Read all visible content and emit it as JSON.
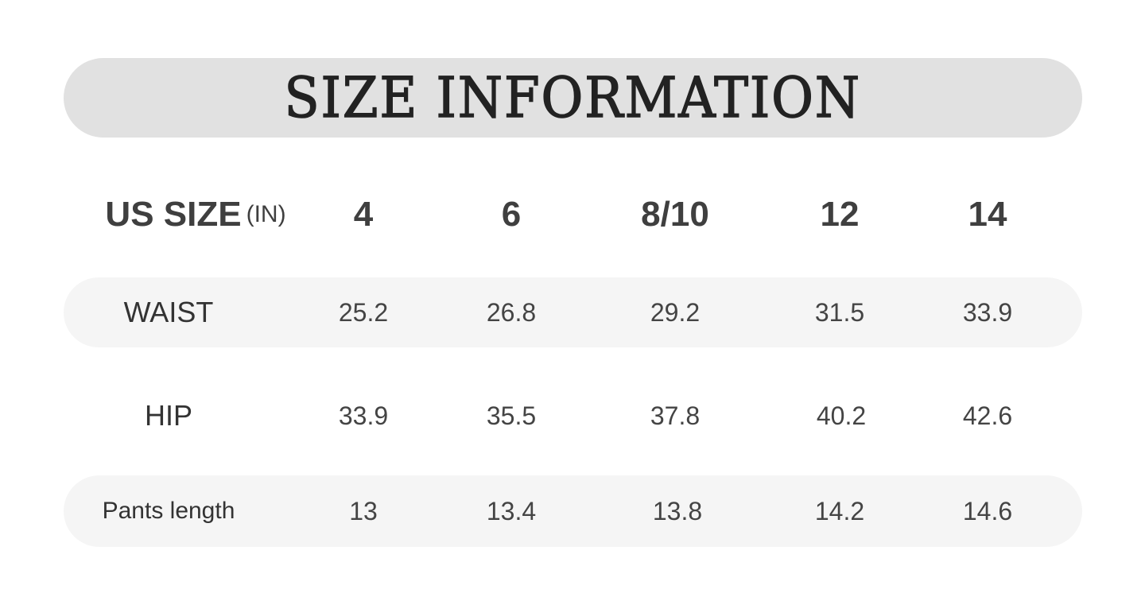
{
  "title": "SIZE INFORMATION",
  "header": {
    "label": "US SIZE",
    "unit": "(IN)",
    "sizes": [
      "4",
      "6",
      "8/10",
      "12",
      "14"
    ]
  },
  "rows": [
    {
      "label": "WAIST",
      "values": [
        "25.2",
        "26.8",
        "29.2",
        "31.5",
        "33.9"
      ]
    },
    {
      "label": "HIP",
      "values": [
        "33.9",
        "35.5",
        "37.8",
        "40.2",
        "42.6"
      ]
    },
    {
      "label": "Pants length",
      "values": [
        "13",
        "13.4",
        "13.8",
        "14.2",
        "14.6"
      ]
    }
  ],
  "colors": {
    "banner": "#e1e1e1",
    "row_band": "#f5f5f5",
    "title_text": "#222222",
    "body_text": "#444444"
  }
}
